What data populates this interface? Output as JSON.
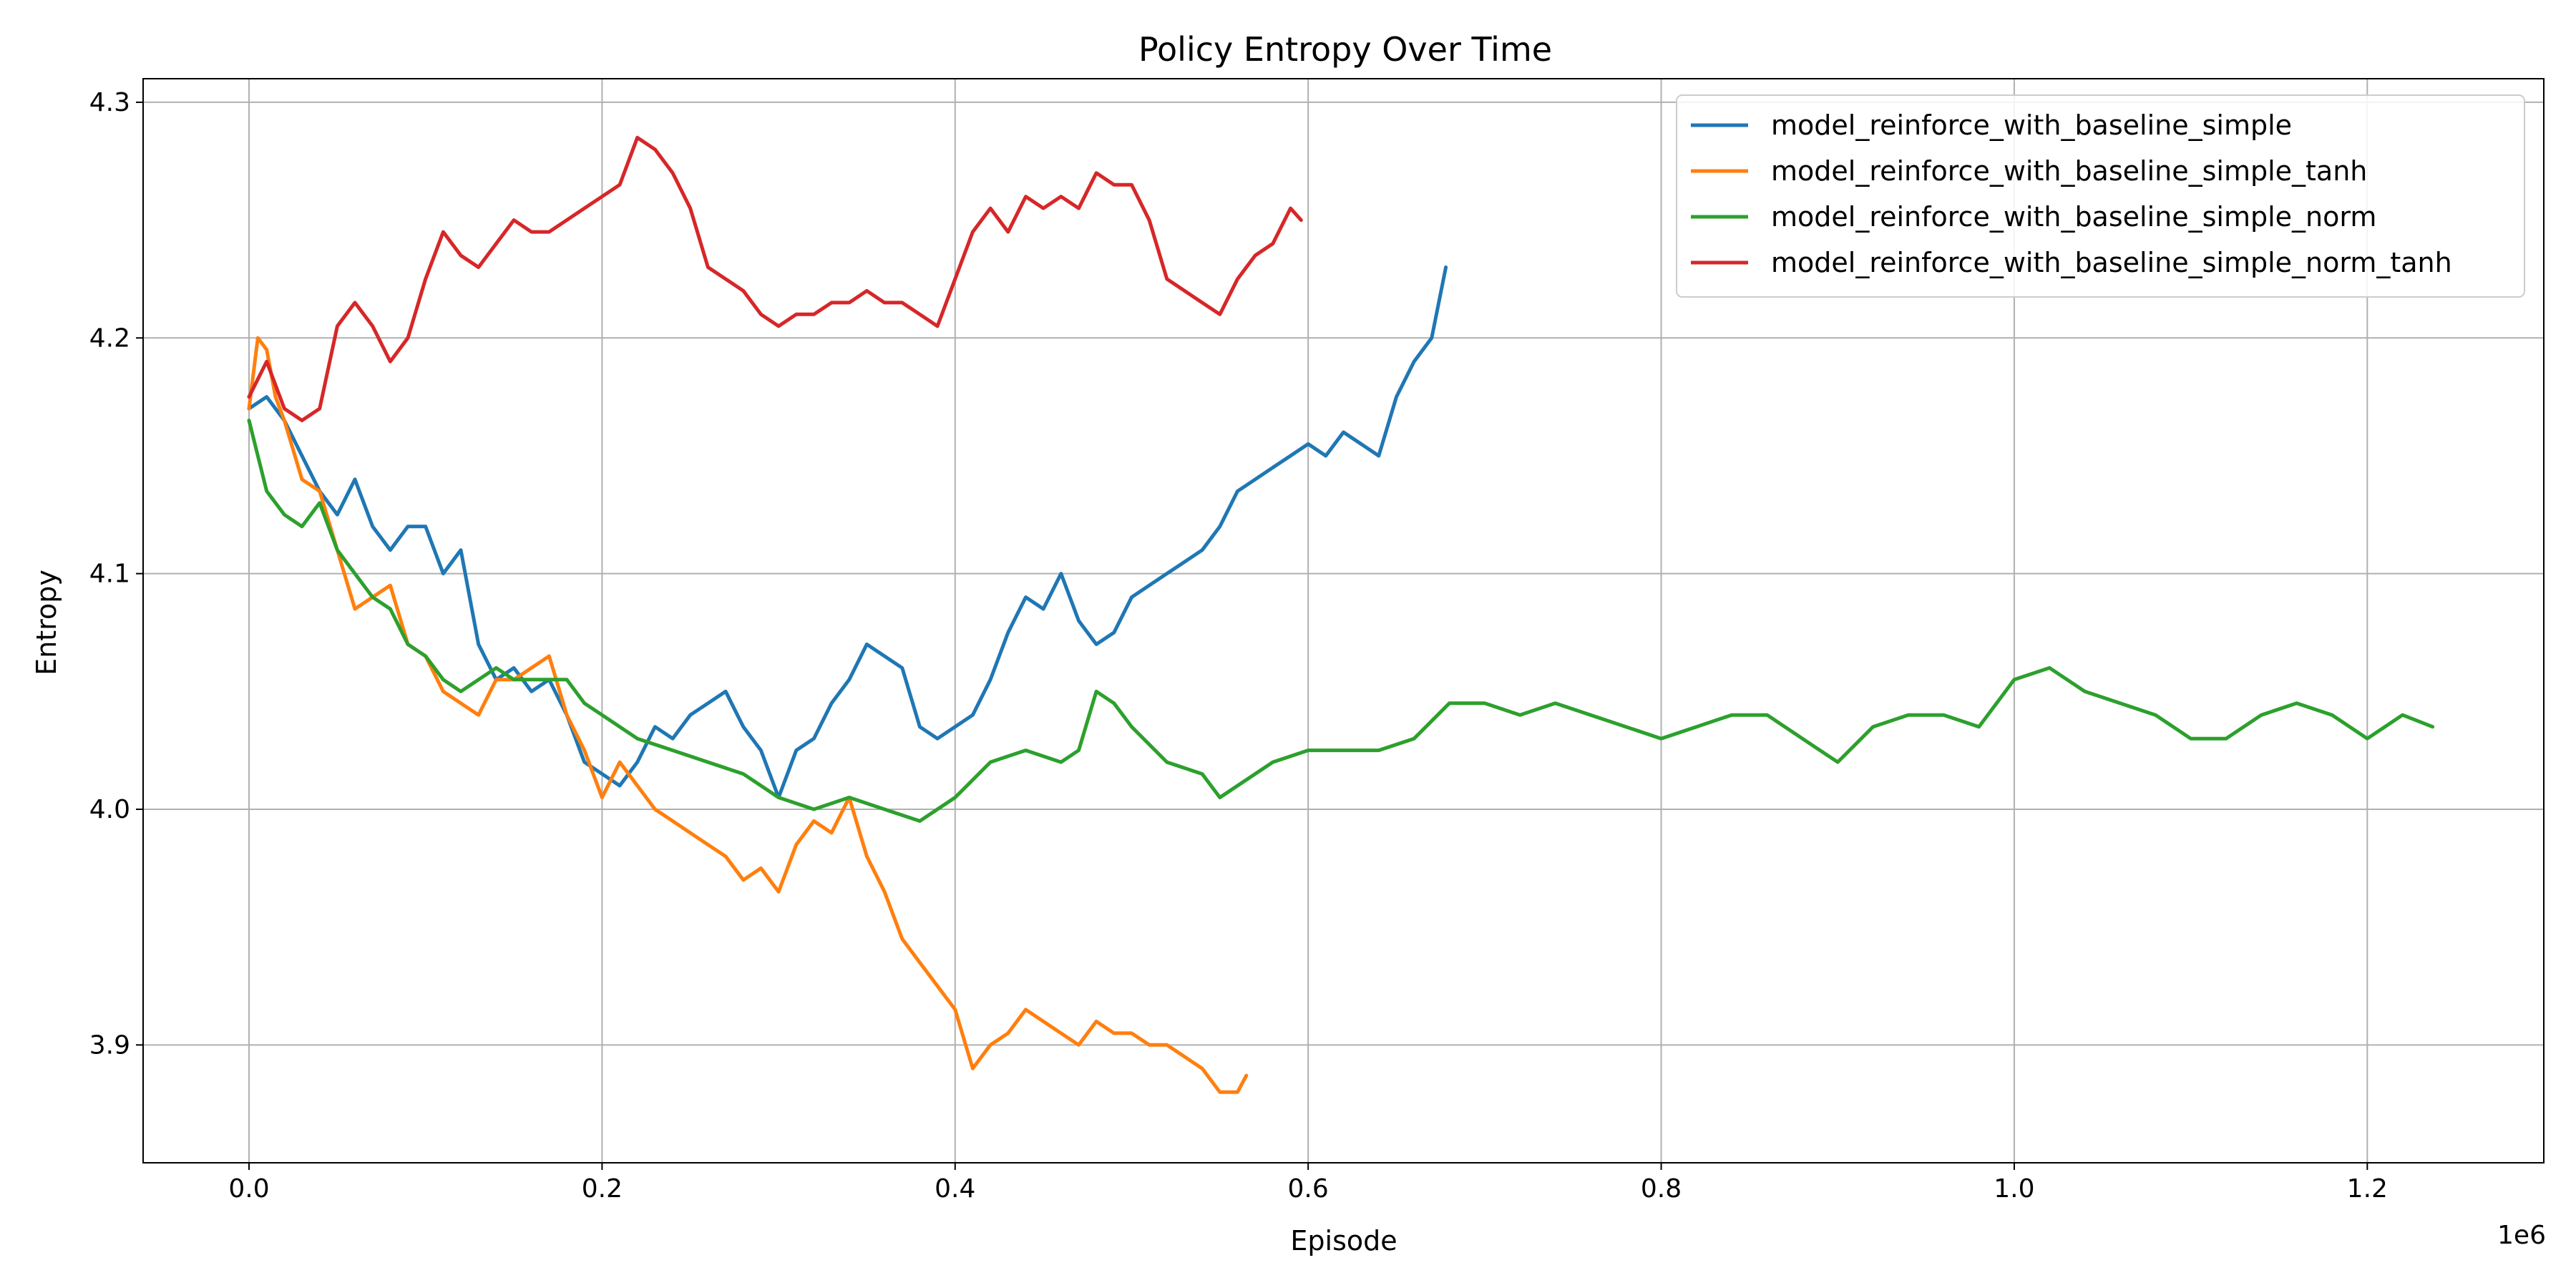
{
  "chart_data": {
    "type": "line",
    "title": "Policy Entropy Over Time",
    "xlabel": "Episode",
    "ylabel": "Entropy",
    "x_offset_label": "1e6",
    "xlim": [
      -0.06,
      1.3
    ],
    "ylim": [
      3.85,
      4.31
    ],
    "xticks": [
      0.0,
      0.2,
      0.4,
      0.6,
      0.8,
      1.0,
      1.2
    ],
    "xtick_labels": [
      "0.0",
      "0.2",
      "0.4",
      "0.6",
      "0.8",
      "1.0",
      "1.2"
    ],
    "yticks": [
      3.9,
      4.0,
      4.1,
      4.2,
      4.3
    ],
    "ytick_labels": [
      "3.9",
      "4.0",
      "4.1",
      "4.2",
      "4.3"
    ],
    "grid": true,
    "legend_position": "top-right",
    "series": [
      {
        "name": "model_reinforce_with_baseline_simple",
        "color": "#1f77b4",
        "x": [
          0.0,
          0.01,
          0.02,
          0.03,
          0.04,
          0.05,
          0.06,
          0.07,
          0.08,
          0.09,
          0.1,
          0.11,
          0.12,
          0.13,
          0.14,
          0.15,
          0.16,
          0.17,
          0.18,
          0.19,
          0.2,
          0.21,
          0.22,
          0.23,
          0.24,
          0.25,
          0.26,
          0.27,
          0.28,
          0.29,
          0.3,
          0.31,
          0.32,
          0.33,
          0.34,
          0.35,
          0.36,
          0.37,
          0.38,
          0.39,
          0.4,
          0.41,
          0.42,
          0.43,
          0.44,
          0.45,
          0.46,
          0.47,
          0.48,
          0.49,
          0.5,
          0.51,
          0.52,
          0.53,
          0.54,
          0.55,
          0.56,
          0.57,
          0.58,
          0.59,
          0.6,
          0.61,
          0.62,
          0.63,
          0.64,
          0.65,
          0.66,
          0.67,
          0.678
        ],
        "y": [
          4.17,
          4.175,
          4.165,
          4.15,
          4.135,
          4.125,
          4.14,
          4.12,
          4.11,
          4.12,
          4.12,
          4.1,
          4.11,
          4.07,
          4.055,
          4.06,
          4.05,
          4.055,
          4.04,
          4.02,
          4.015,
          4.01,
          4.02,
          4.035,
          4.03,
          4.04,
          4.045,
          4.05,
          4.035,
          4.025,
          4.005,
          4.025,
          4.03,
          4.045,
          4.055,
          4.07,
          4.065,
          4.06,
          4.035,
          4.03,
          4.035,
          4.04,
          4.055,
          4.075,
          4.09,
          4.085,
          4.1,
          4.08,
          4.07,
          4.075,
          4.09,
          4.095,
          4.1,
          4.105,
          4.11,
          4.12,
          4.135,
          4.14,
          4.145,
          4.15,
          4.155,
          4.15,
          4.16,
          4.155,
          4.15,
          4.175,
          4.19,
          4.2,
          4.23
        ]
      },
      {
        "name": "model_reinforce_with_baseline_simple_tanh",
        "color": "#ff7f0e",
        "x": [
          0.0,
          0.005,
          0.01,
          0.015,
          0.02,
          0.03,
          0.04,
          0.05,
          0.06,
          0.07,
          0.08,
          0.09,
          0.1,
          0.11,
          0.12,
          0.13,
          0.14,
          0.15,
          0.16,
          0.17,
          0.18,
          0.19,
          0.2,
          0.21,
          0.22,
          0.23,
          0.24,
          0.25,
          0.26,
          0.27,
          0.28,
          0.29,
          0.3,
          0.31,
          0.32,
          0.33,
          0.34,
          0.35,
          0.36,
          0.37,
          0.38,
          0.39,
          0.4,
          0.41,
          0.42,
          0.43,
          0.44,
          0.45,
          0.46,
          0.47,
          0.48,
          0.49,
          0.5,
          0.51,
          0.52,
          0.53,
          0.54,
          0.55,
          0.56,
          0.565
        ],
        "y": [
          4.17,
          4.2,
          4.195,
          4.175,
          4.165,
          4.14,
          4.135,
          4.11,
          4.085,
          4.09,
          4.095,
          4.07,
          4.065,
          4.05,
          4.045,
          4.04,
          4.055,
          4.055,
          4.06,
          4.065,
          4.04,
          4.025,
          4.005,
          4.02,
          4.01,
          4.0,
          3.995,
          3.99,
          3.985,
          3.98,
          3.97,
          3.975,
          3.965,
          3.985,
          3.995,
          3.99,
          4.005,
          3.98,
          3.965,
          3.945,
          3.935,
          3.925,
          3.915,
          3.89,
          3.9,
          3.905,
          3.915,
          3.91,
          3.905,
          3.9,
          3.91,
          3.905,
          3.905,
          3.9,
          3.9,
          3.895,
          3.89,
          3.88,
          3.88,
          3.887
        ]
      },
      {
        "name": "model_reinforce_with_baseline_simple_norm",
        "color": "#2ca02c",
        "x": [
          0.0,
          0.01,
          0.02,
          0.03,
          0.04,
          0.05,
          0.06,
          0.07,
          0.08,
          0.09,
          0.1,
          0.11,
          0.12,
          0.13,
          0.14,
          0.15,
          0.16,
          0.17,
          0.18,
          0.19,
          0.2,
          0.22,
          0.24,
          0.26,
          0.28,
          0.3,
          0.32,
          0.34,
          0.36,
          0.38,
          0.4,
          0.42,
          0.44,
          0.46,
          0.47,
          0.48,
          0.49,
          0.5,
          0.52,
          0.54,
          0.55,
          0.56,
          0.58,
          0.6,
          0.62,
          0.64,
          0.66,
          0.68,
          0.7,
          0.72,
          0.74,
          0.76,
          0.78,
          0.8,
          0.82,
          0.84,
          0.86,
          0.88,
          0.9,
          0.92,
          0.94,
          0.96,
          0.98,
          1.0,
          1.02,
          1.04,
          1.06,
          1.08,
          1.1,
          1.12,
          1.14,
          1.16,
          1.18,
          1.2,
          1.22,
          1.237
        ],
        "y": [
          4.165,
          4.135,
          4.125,
          4.12,
          4.13,
          4.11,
          4.1,
          4.09,
          4.085,
          4.07,
          4.065,
          4.055,
          4.05,
          4.055,
          4.06,
          4.055,
          4.055,
          4.055,
          4.055,
          4.045,
          4.04,
          4.03,
          4.025,
          4.02,
          4.015,
          4.005,
          4.0,
          4.005,
          4.0,
          3.995,
          4.005,
          4.02,
          4.025,
          4.02,
          4.025,
          4.05,
          4.045,
          4.035,
          4.02,
          4.015,
          4.005,
          4.01,
          4.02,
          4.025,
          4.025,
          4.025,
          4.03,
          4.045,
          4.045,
          4.04,
          4.045,
          4.04,
          4.035,
          4.03,
          4.035,
          4.04,
          4.04,
          4.03,
          4.02,
          4.035,
          4.04,
          4.04,
          4.035,
          4.055,
          4.06,
          4.05,
          4.045,
          4.04,
          4.03,
          4.03,
          4.04,
          4.045,
          4.04,
          4.03,
          4.04,
          4.035
        ]
      },
      {
        "name": "model_reinforce_with_baseline_simple_norm_tanh",
        "color": "#d62728",
        "x": [
          0.0,
          0.01,
          0.02,
          0.03,
          0.04,
          0.05,
          0.06,
          0.07,
          0.08,
          0.09,
          0.1,
          0.11,
          0.12,
          0.13,
          0.14,
          0.15,
          0.16,
          0.17,
          0.18,
          0.19,
          0.2,
          0.21,
          0.22,
          0.23,
          0.24,
          0.25,
          0.26,
          0.27,
          0.28,
          0.29,
          0.3,
          0.31,
          0.32,
          0.33,
          0.34,
          0.35,
          0.36,
          0.37,
          0.38,
          0.39,
          0.4,
          0.41,
          0.42,
          0.43,
          0.44,
          0.45,
          0.46,
          0.47,
          0.48,
          0.49,
          0.5,
          0.51,
          0.52,
          0.53,
          0.54,
          0.55,
          0.56,
          0.57,
          0.58,
          0.59,
          0.596
        ],
        "y": [
          4.175,
          4.19,
          4.17,
          4.165,
          4.17,
          4.205,
          4.215,
          4.205,
          4.19,
          4.2,
          4.225,
          4.245,
          4.235,
          4.23,
          4.24,
          4.25,
          4.245,
          4.245,
          4.25,
          4.255,
          4.26,
          4.265,
          4.285,
          4.28,
          4.27,
          4.255,
          4.23,
          4.225,
          4.22,
          4.21,
          4.205,
          4.21,
          4.21,
          4.215,
          4.215,
          4.22,
          4.215,
          4.215,
          4.21,
          4.205,
          4.225,
          4.245,
          4.255,
          4.245,
          4.26,
          4.255,
          4.26,
          4.255,
          4.27,
          4.265,
          4.265,
          4.25,
          4.225,
          4.22,
          4.215,
          4.21,
          4.225,
          4.235,
          4.24,
          4.255,
          4.25
        ]
      }
    ]
  }
}
